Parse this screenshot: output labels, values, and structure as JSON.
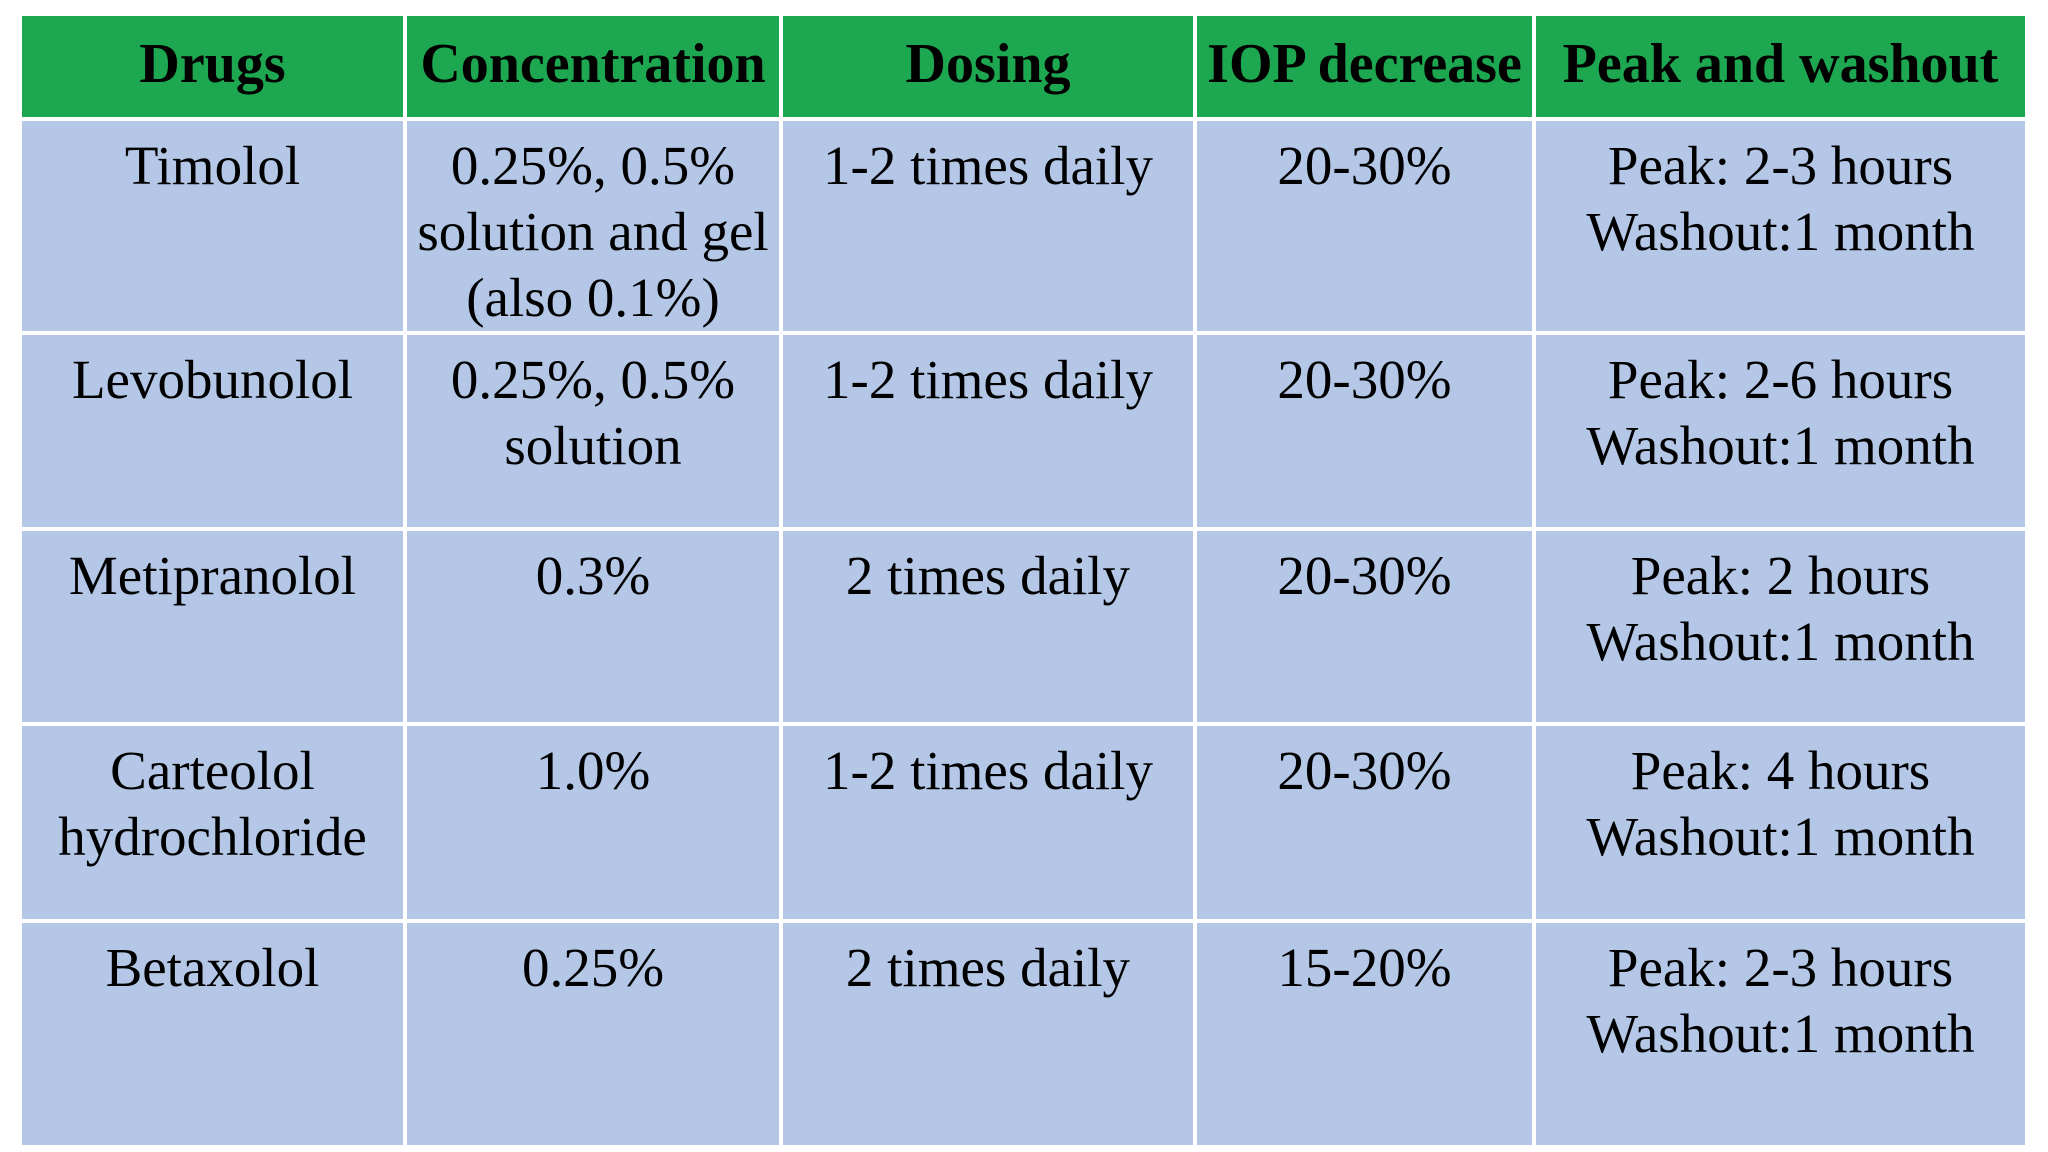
{
  "table": {
    "columns": [
      {
        "label": "Drugs"
      },
      {
        "label": "Concentration"
      },
      {
        "label": "Dosing"
      },
      {
        "label": "IOP decrease"
      },
      {
        "label": "Peak and washout"
      }
    ],
    "rows": [
      {
        "cells": [
          [
            "Timolol"
          ],
          [
            "0.25%, 0.5%",
            "solution and gel",
            "(also 0.1%)"
          ],
          [
            "1-2 times daily"
          ],
          [
            "20-30%"
          ],
          [
            "Peak: 2-3 hours",
            "Washout:1 month"
          ]
        ]
      },
      {
        "cells": [
          [
            "Levobunolol"
          ],
          [
            "0.25%, 0.5%",
            "solution"
          ],
          [
            "1-2 times daily"
          ],
          [
            "20-30%"
          ],
          [
            "Peak: 2-6 hours",
            "Washout:1 month"
          ]
        ]
      },
      {
        "cells": [
          [
            "Metipranolol"
          ],
          [
            "0.3%"
          ],
          [
            "2 times daily"
          ],
          [
            "20-30%"
          ],
          [
            "Peak: 2 hours",
            "Washout:1 month"
          ]
        ]
      },
      {
        "cells": [
          [
            "Carteolol",
            "hydrochloride"
          ],
          [
            "1.0%"
          ],
          [
            "1-2 times daily"
          ],
          [
            "20-30%"
          ],
          [
            "Peak: 4 hours",
            "Washout:1 month"
          ]
        ]
      },
      {
        "cells": [
          [
            "Betaxolol"
          ],
          [
            "0.25%"
          ],
          [
            "2 times daily"
          ],
          [
            "15-20%"
          ],
          [
            "Peak: 2-3 hours",
            "Washout:1 month"
          ]
        ]
      }
    ]
  },
  "colors": {
    "header_bg": "#1CA750",
    "row_bg": "#B4C7E7",
    "grid": "#FFFFFF",
    "text": "#000000",
    "page_bg": "#FFFFFF"
  }
}
